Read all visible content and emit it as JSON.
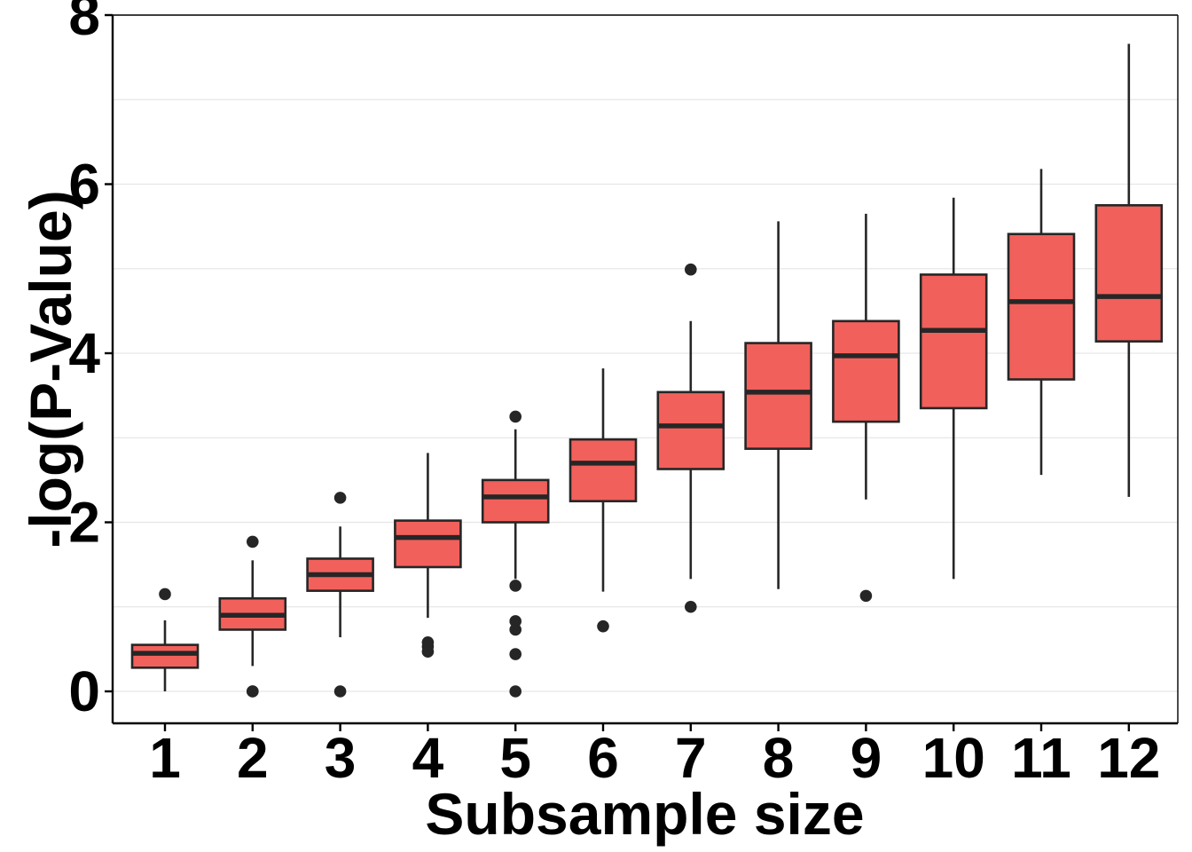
{
  "chart_data": {
    "type": "boxplot",
    "title": "",
    "xlabel": "Subsample size",
    "ylabel": "-log(P-Value)",
    "ylim": [
      -0.35,
      8.0
    ],
    "yticks": [
      0,
      2,
      4,
      6,
      8
    ],
    "ytick_labels": [
      "0",
      "2",
      "4",
      "6",
      "8"
    ],
    "y_minor_gridlines": [
      1,
      3,
      5,
      7
    ],
    "categories": [
      "1",
      "2",
      "3",
      "4",
      "5",
      "6",
      "7",
      "8",
      "9",
      "10",
      "11",
      "12"
    ],
    "fill_color": "#F2605B",
    "border_color": "#262626",
    "boxes": [
      {
        "category": "1",
        "whisker_low": 0.0,
        "q1": 0.28,
        "median": 0.45,
        "q3": 0.55,
        "whisker_high": 0.84,
        "outliers": [
          1.15
        ]
      },
      {
        "category": "2",
        "whisker_low": 0.3,
        "q1": 0.73,
        "median": 0.9,
        "q3": 1.1,
        "whisker_high": 1.55,
        "outliers": [
          1.77,
          0.0,
          0.0
        ]
      },
      {
        "category": "3",
        "whisker_low": 0.64,
        "q1": 1.19,
        "median": 1.38,
        "q3": 1.57,
        "whisker_high": 1.95,
        "outliers": [
          2.29,
          0.0
        ]
      },
      {
        "category": "4",
        "whisker_low": 0.87,
        "q1": 1.47,
        "median": 1.82,
        "q3": 2.02,
        "whisker_high": 2.82,
        "outliers": [
          0.58,
          0.53,
          0.47
        ]
      },
      {
        "category": "5",
        "whisker_low": 1.33,
        "q1": 2.0,
        "median": 2.3,
        "q3": 2.5,
        "whisker_high": 3.1,
        "outliers": [
          3.25,
          1.25,
          0.83,
          0.73,
          0.44,
          0.0
        ]
      },
      {
        "category": "6",
        "whisker_low": 1.18,
        "q1": 2.25,
        "median": 2.7,
        "q3": 2.98,
        "whisker_high": 3.82,
        "outliers": [
          0.77
        ]
      },
      {
        "category": "7",
        "whisker_low": 1.33,
        "q1": 2.63,
        "median": 3.14,
        "q3": 3.54,
        "whisker_high": 4.38,
        "outliers": [
          4.99,
          1.0
        ]
      },
      {
        "category": "8",
        "whisker_low": 1.21,
        "q1": 2.87,
        "median": 3.54,
        "q3": 4.12,
        "whisker_high": 5.56,
        "outliers": []
      },
      {
        "category": "9",
        "whisker_low": 2.27,
        "q1": 3.19,
        "median": 3.97,
        "q3": 4.38,
        "whisker_high": 5.65,
        "outliers": [
          1.13
        ]
      },
      {
        "category": "10",
        "whisker_low": 1.33,
        "q1": 3.35,
        "median": 4.27,
        "q3": 4.93,
        "whisker_high": 5.84,
        "outliers": []
      },
      {
        "category": "11",
        "whisker_low": 2.56,
        "q1": 3.69,
        "median": 4.61,
        "q3": 5.41,
        "whisker_high": 6.18,
        "outliers": []
      },
      {
        "category": "12",
        "whisker_low": 2.3,
        "q1": 4.14,
        "median": 4.67,
        "q3": 5.75,
        "whisker_high": 7.66,
        "outliers": []
      }
    ]
  }
}
